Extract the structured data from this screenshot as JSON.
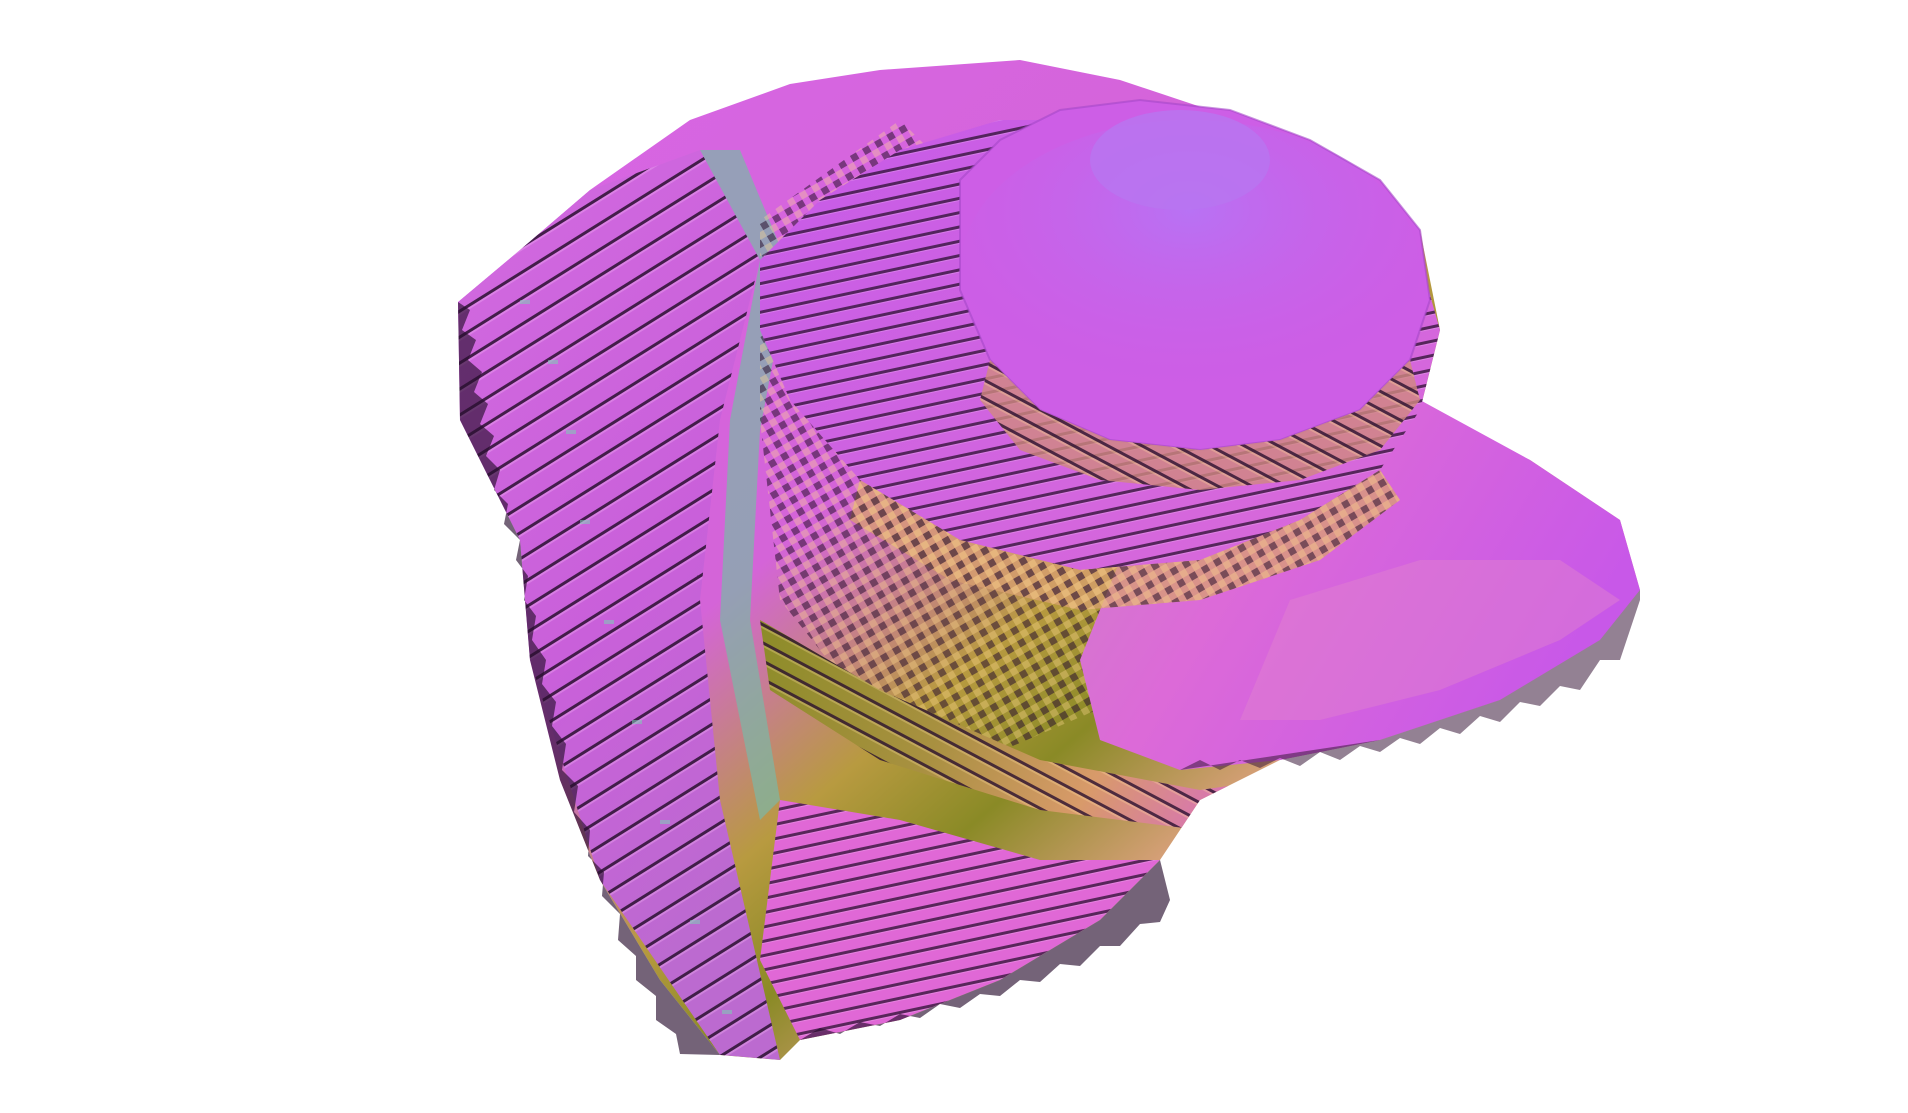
{
  "scene": {
    "background_color": "#ffffff",
    "subject": "voxelized-3d-surface",
    "palette": {
      "magenta": "#d65ae0",
      "violet": "#b25af2",
      "pink": "#e07ad6",
      "orange": "#e0a060",
      "olive": "#8a8a26",
      "teal": "#6ab8b0",
      "shadow": "#2a1030"
    }
  }
}
